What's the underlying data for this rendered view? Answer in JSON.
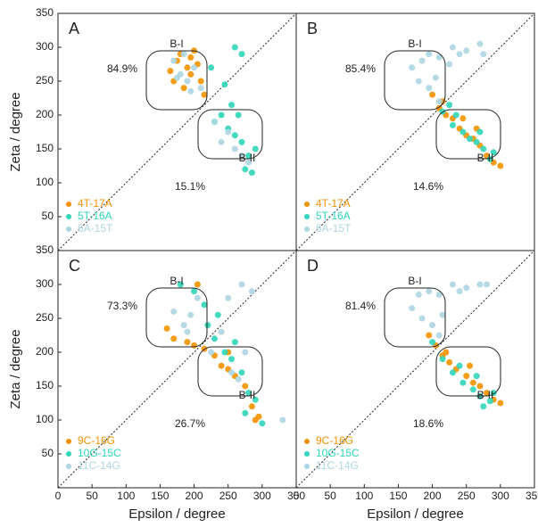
{
  "chart_data": [
    {
      "type": "scatter",
      "label": "A",
      "annotations": [
        "84.9%",
        "15.1%",
        "B-I",
        "B-II"
      ],
      "ylabel": "Zeta / degree",
      "xlim": [
        0,
        350
      ],
      "ylim": [
        0,
        350
      ],
      "yticks": [
        50,
        100,
        150,
        200,
        250,
        300,
        350
      ],
      "series": [
        {
          "name": "4T-17A",
          "color": "#f39200",
          "x": [
            165,
            180,
            195,
            200,
            210,
            185,
            170,
            205,
            215,
            195,
            175,
            190
          ],
          "values": [
            265,
            290,
            285,
            295,
            250,
            240,
            250,
            275,
            230,
            260,
            280,
            270
          ]
        },
        {
          "name": "5T-16A",
          "color": "#2fd6b8",
          "x": [
            230,
            250,
            260,
            270,
            280,
            275,
            285,
            240,
            265,
            270,
            260,
            255,
            290,
            225,
            245
          ],
          "values": [
            190,
            180,
            170,
            160,
            140,
            120,
            115,
            200,
            200,
            290,
            300,
            215,
            150,
            270,
            245
          ]
        },
        {
          "name": "6A-15T",
          "color": "#aed6e2",
          "x": [
            170,
            180,
            190,
            200,
            185,
            195,
            210,
            175,
            240,
            260,
            270,
            250,
            230,
            280
          ],
          "values": [
            280,
            260,
            250,
            270,
            290,
            235,
            240,
            255,
            160,
            150,
            140,
            175,
            190,
            130
          ]
        }
      ]
    },
    {
      "type": "scatter",
      "label": "B",
      "annotations": [
        "85.4%",
        "14.6%",
        "B-I",
        "B-II"
      ],
      "xlim": [
        0,
        350
      ],
      "ylim": [
        0,
        350
      ],
      "series": [
        {
          "name": "4T-17A",
          "color": "#f39200",
          "x": [
            200,
            210,
            220,
            230,
            240,
            250,
            260,
            270,
            280,
            290,
            300,
            215,
            245,
            265
          ],
          "values": [
            230,
            210,
            200,
            195,
            180,
            170,
            165,
            155,
            140,
            130,
            125,
            220,
            195,
            180
          ]
        },
        {
          "name": "5T-16A",
          "color": "#2fd6b8",
          "x": [
            215,
            230,
            245,
            255,
            265,
            275,
            285,
            290,
            235,
            225,
            270
          ],
          "values": [
            205,
            185,
            175,
            165,
            160,
            150,
            135,
            145,
            200,
            215,
            175
          ]
        },
        {
          "name": "6A-15T",
          "color": "#aed6e2",
          "x": [
            170,
            185,
            195,
            210,
            230,
            250,
            270,
            275,
            180,
            195,
            205,
            225,
            210,
            240
          ],
          "values": [
            270,
            280,
            290,
            285,
            300,
            295,
            305,
            290,
            250,
            240,
            255,
            275,
            220,
            290
          ]
        }
      ]
    },
    {
      "type": "scatter",
      "label": "C",
      "annotations": [
        "73.3%",
        "26.7%",
        "B-I",
        "B-II"
      ],
      "ylabel": "Zeta / degree",
      "xlabel": "Epsilon / degree",
      "xlim": [
        0,
        350
      ],
      "ylim": [
        0,
        350
      ],
      "xticks": [
        0,
        50,
        100,
        150,
        200,
        250,
        300,
        350
      ],
      "yticks": [
        50,
        100,
        150,
        200,
        250,
        300,
        350
      ],
      "series": [
        {
          "name": "9C-16G",
          "color": "#f39200",
          "x": [
            160,
            170,
            190,
            200,
            215,
            230,
            240,
            250,
            260,
            275,
            285,
            295,
            290,
            205,
            250
          ],
          "values": [
            235,
            220,
            215,
            210,
            205,
            195,
            180,
            175,
            165,
            150,
            120,
            105,
            100,
            300,
            200
          ]
        },
        {
          "name": "10G-15C",
          "color": "#2fd6b8",
          "x": [
            180,
            200,
            215,
            220,
            230,
            245,
            255,
            270,
            280,
            290,
            275,
            300,
            235,
            260
          ],
          "values": [
            300,
            290,
            270,
            240,
            220,
            200,
            190,
            170,
            140,
            130,
            110,
            95,
            255,
            215
          ]
        },
        {
          "name": "11C-14G",
          "color": "#aed6e2",
          "x": [
            170,
            185,
            195,
            205,
            270,
            285,
            250,
            240,
            255,
            265,
            225,
            330,
            275,
            190
          ],
          "values": [
            260,
            240,
            255,
            280,
            300,
            290,
            280,
            230,
            170,
            160,
            200,
            100,
            200,
            230
          ]
        }
      ]
    },
    {
      "type": "scatter",
      "label": "D",
      "annotations": [
        "81.4%",
        "18.6%",
        "B-I",
        "B-II"
      ],
      "xlabel": "Epsilon / degree",
      "xlim": [
        0,
        350
      ],
      "ylim": [
        0,
        350
      ],
      "xticks": [
        0,
        50,
        100,
        150,
        200,
        250,
        300,
        350
      ],
      "series": [
        {
          "name": "9C-16G",
          "color": "#f39200",
          "x": [
            195,
            205,
            215,
            225,
            235,
            250,
            260,
            270,
            280,
            290,
            300,
            220,
            255
          ],
          "values": [
            225,
            210,
            195,
            185,
            175,
            165,
            155,
            150,
            140,
            130,
            125,
            200,
            180
          ]
        },
        {
          "name": "10G-15C",
          "color": "#2fd6b8",
          "x": [
            200,
            215,
            230,
            245,
            260,
            270,
            285,
            275,
            240,
            265,
            290
          ],
          "values": [
            215,
            190,
            170,
            155,
            145,
            135,
            128,
            120,
            180,
            165,
            140
          ]
        },
        {
          "name": "11C-14G",
          "color": "#aed6e2",
          "x": [
            170,
            180,
            195,
            210,
            230,
            250,
            270,
            280,
            185,
            200,
            215,
            240,
            210
          ],
          "values": [
            265,
            285,
            290,
            285,
            300,
            295,
            300,
            300,
            250,
            240,
            255,
            290,
            225
          ]
        }
      ]
    }
  ]
}
